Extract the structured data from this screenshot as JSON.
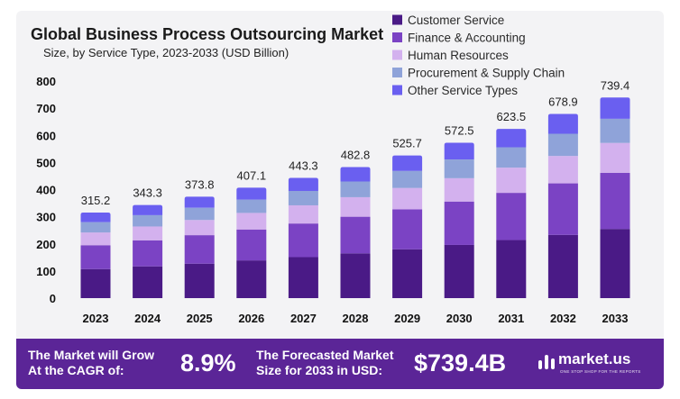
{
  "chart_data": {
    "type": "bar",
    "stacked": true,
    "title": "Global Business Process Outsourcing Market",
    "subtitle": "Size, by Service Type, 2023-2033 (USD Billion)",
    "xlabel": "",
    "ylabel": "",
    "ylim": [
      0,
      800
    ],
    "yticks": [
      0,
      100,
      200,
      300,
      400,
      500,
      600,
      700,
      800
    ],
    "grid": false,
    "legend_position": "top-right",
    "categories": [
      "2023",
      "2024",
      "2025",
      "2026",
      "2027",
      "2028",
      "2029",
      "2030",
      "2031",
      "2032",
      "2033"
    ],
    "totals": [
      315.2,
      343.3,
      373.8,
      407.1,
      443.3,
      482.8,
      525.7,
      572.5,
      623.5,
      678.9,
      739.4
    ],
    "total_labels": [
      "315.2",
      "343.3",
      "373.8",
      "407.1",
      "443.3",
      "482.8",
      "525.7",
      "572.5",
      "623.5",
      "678.9",
      "739.4"
    ],
    "series": [
      {
        "name": "Customer Service",
        "color": "#4a1a86",
        "values": [
          107,
          117,
          127,
          139,
          151,
          165,
          180,
          196,
          214,
          233,
          255
        ]
      },
      {
        "name": "Finance & Accounting",
        "color": "#7b43c4",
        "values": [
          88,
          96,
          105,
          114,
          124,
          135,
          147,
          160,
          174,
          190,
          207
        ]
      },
      {
        "name": "Human Resources",
        "color": "#d3b1ee",
        "values": [
          47,
          51,
          56,
          61,
          67,
          72,
          79,
          86,
          93,
          101,
          110
        ]
      },
      {
        "name": "Procurement & Supply Chain",
        "color": "#8fa3d9",
        "values": [
          38,
          42,
          45,
          49,
          53,
          58,
          63,
          69,
          75,
          82,
          89
        ]
      },
      {
        "name": "Other Service Types",
        "color": "#6a5ff0",
        "values": [
          35.2,
          37.3,
          40.8,
          44.1,
          48.3,
          52.8,
          56.7,
          61.5,
          67.5,
          72.9,
          78.4
        ]
      }
    ]
  },
  "footer": {
    "cagr_label_line1": "The Market will Grow",
    "cagr_label_line2": "At the CAGR of:",
    "cagr_value": "8.9%",
    "forecast_label_line1": "The Forecasted Market",
    "forecast_label_line2": "Size for 2033 in USD:",
    "forecast_value": "$739.4B",
    "brand_name": "market.us",
    "brand_tagline": "ONE STOP SHOP FOR THE REPORTS"
  }
}
